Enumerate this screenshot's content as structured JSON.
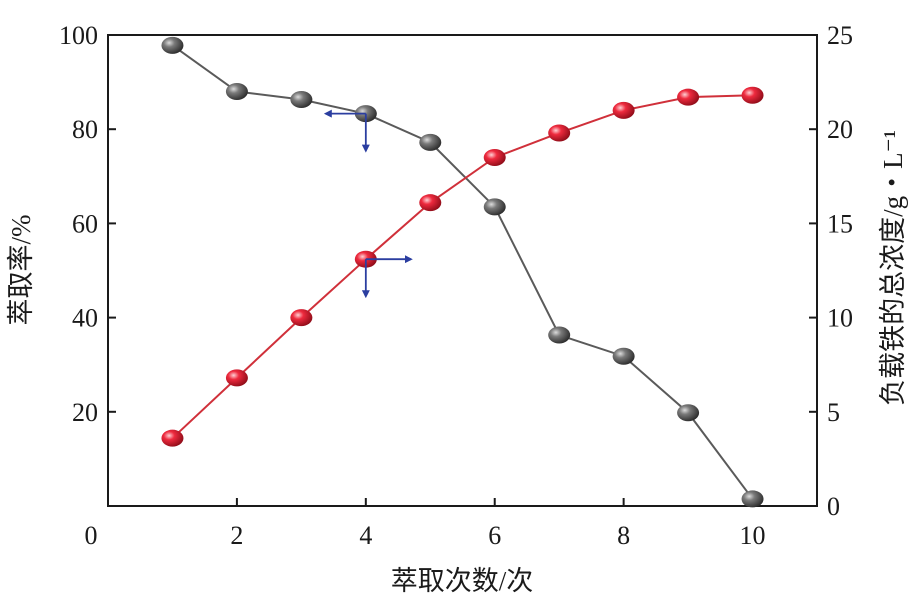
{
  "chart_data": {
    "type": "line",
    "xlabel": "萃取次数/次",
    "ylabel_left": "萃取率/%",
    "ylabel_right": "负载铁的总浓度/g・L⁻¹",
    "x_ticks": [
      "0",
      "2",
      "4",
      "6",
      "8",
      "10"
    ],
    "y_left_ticks": [
      "20",
      "40",
      "60",
      "80",
      "100"
    ],
    "y_right_ticks": [
      "0",
      "5",
      "10",
      "15",
      "20",
      "25"
    ],
    "xlim": [
      0,
      11
    ],
    "ylim_left": [
      0,
      100
    ],
    "ylim_right": [
      0,
      25
    ],
    "series": [
      {
        "axis": "left",
        "color": "#5a5a5a",
        "marker_color": "#555555",
        "x": [
          1,
          2,
          3,
          4,
          5,
          6,
          7,
          8,
          9,
          10
        ],
        "values": [
          97.8,
          88.0,
          86.3,
          83.3,
          77.2,
          63.5,
          36.3,
          31.8,
          19.8,
          1.5
        ]
      },
      {
        "axis": "right",
        "color": "#d0303a",
        "marker_color": "#e0283a",
        "x": [
          1,
          2,
          3,
          4,
          5,
          6,
          7,
          8,
          9,
          10
        ],
        "values": [
          3.6,
          6.8,
          10.0,
          13.1,
          16.1,
          18.5,
          19.8,
          21.0,
          21.7,
          21.8
        ]
      }
    ],
    "annotations": [
      {
        "type": "arrow-pair",
        "x": 4,
        "y": 83.3,
        "axis": "left",
        "dir": "left",
        "color": "#2b3ea0"
      },
      {
        "type": "arrow-pair",
        "x": 4,
        "y": 52.4,
        "axis": "left",
        "dir": "right",
        "color": "#2b3ea0"
      }
    ]
  }
}
